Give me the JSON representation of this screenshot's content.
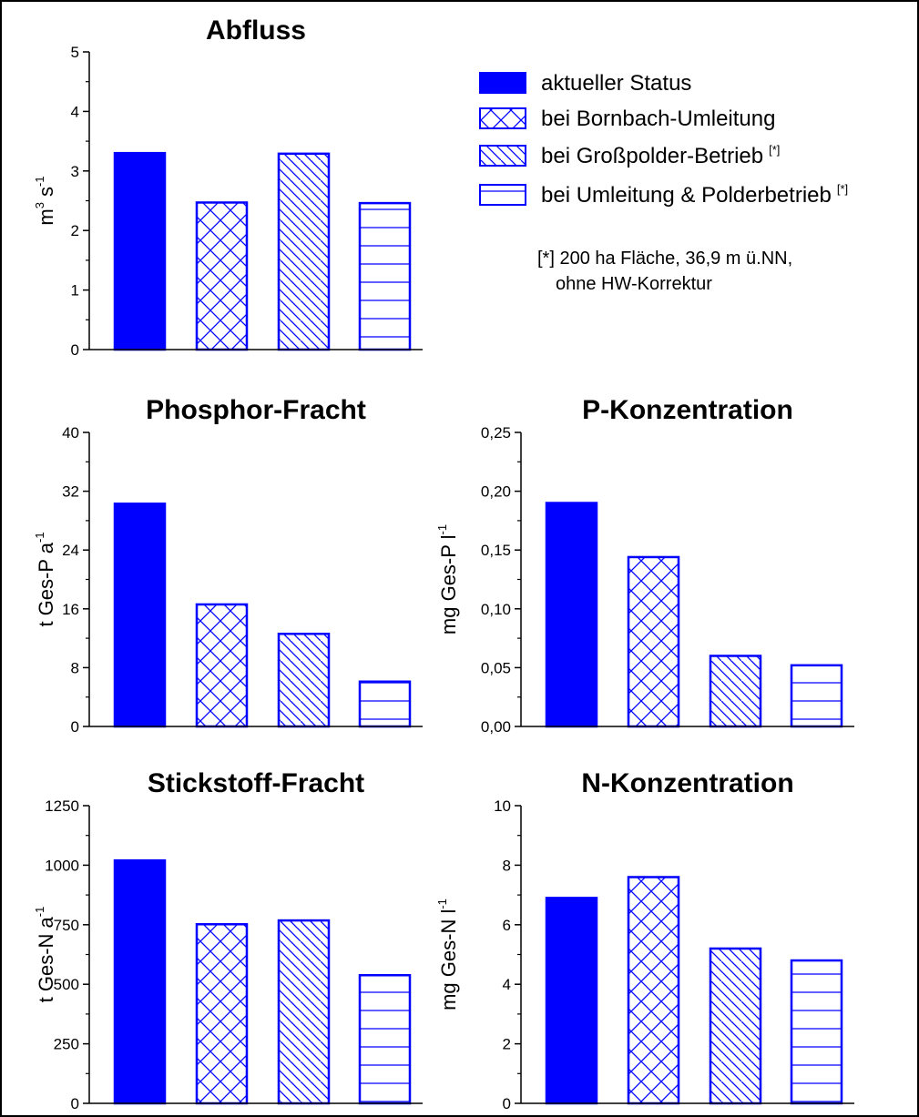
{
  "colors": {
    "bar": "#0000ff",
    "axis": "#000000",
    "background": "#ffffff"
  },
  "legend": {
    "entries": [
      {
        "label": "aktueller Status",
        "pattern": "solid"
      },
      {
        "label": "bei Bornbach-Umleitung",
        "pattern": "crosshatch"
      },
      {
        "label": "bei Großpolder-Betrieb",
        "pattern": "diagonal",
        "marker": "[*]"
      },
      {
        "label": "bei Umleitung & Polderbetrieb",
        "pattern": "horizontal",
        "marker": "[*]"
      }
    ],
    "note_line1": "[*] 200 ha Fläche, 36,9 m ü.NN,",
    "note_line2": "ohne HW-Korrektur"
  },
  "chart_data": [
    {
      "type": "bar",
      "title": "Abfluss",
      "ylabel": "m",
      "ylabel_sup1": "3",
      "ylabel_mid": " s",
      "ylabel_sup2": "-1",
      "categories": [
        "aktueller Status",
        "bei Bornbach-Umleitung",
        "bei Großpolder-Betrieb",
        "bei Umleitung & Polderbetrieb"
      ],
      "values": [
        3.3,
        2.47,
        3.29,
        2.46
      ],
      "ylim": [
        0,
        5
      ],
      "ticks": [
        "0",
        "1",
        "2",
        "3",
        "4",
        "5"
      ]
    },
    {
      "type": "bar",
      "title": "Phosphor-Fracht",
      "ylabel": "t Ges-P a",
      "ylabel_sup1": "-1",
      "categories": [
        "aktueller Status",
        "bei Bornbach-Umleitung",
        "bei Großpolder-Betrieb",
        "bei Umleitung & Polderbetrieb"
      ],
      "values": [
        30.3,
        16.6,
        12.6,
        6.1
      ],
      "ylim": [
        0,
        40
      ],
      "ticks": [
        "0",
        "8",
        "16",
        "24",
        "32",
        "40"
      ]
    },
    {
      "type": "bar",
      "title": "P-Konzentration",
      "ylabel": "mg Ges-P l",
      "ylabel_sup1": "-1",
      "categories": [
        "aktueller Status",
        "bei Bornbach-Umleitung",
        "bei Großpolder-Betrieb",
        "bei Umleitung & Polderbetrieb"
      ],
      "values": [
        0.19,
        0.144,
        0.06,
        0.052
      ],
      "ylim": [
        0,
        0.25
      ],
      "ticks": [
        "0,00",
        "0,05",
        "0,10",
        "0,15",
        "0,20",
        "0,25"
      ]
    },
    {
      "type": "bar",
      "title": "Stickstoff-Fracht",
      "ylabel": "t Ges-N a",
      "ylabel_sup1": "-1",
      "categories": [
        "aktueller Status",
        "bei Bornbach-Umleitung",
        "bei Großpolder-Betrieb",
        "bei Umleitung & Polderbetrieb"
      ],
      "values": [
        1020,
        752,
        768,
        538
      ],
      "ylim": [
        0,
        1250
      ],
      "ticks": [
        "0",
        "250",
        "500",
        "750",
        "1000",
        "1250"
      ]
    },
    {
      "type": "bar",
      "title": "N-Konzentration",
      "ylabel": "mg Ges-N l",
      "ylabel_sup1": "-1",
      "categories": [
        "aktueller Status",
        "bei Bornbach-Umleitung",
        "bei Großpolder-Betrieb",
        "bei Umleitung & Polderbetrieb"
      ],
      "values": [
        6.9,
        7.6,
        5.2,
        4.8
      ],
      "ylim": [
        0,
        10
      ],
      "ticks": [
        "0",
        "2",
        "4",
        "6",
        "8",
        "10"
      ]
    }
  ]
}
